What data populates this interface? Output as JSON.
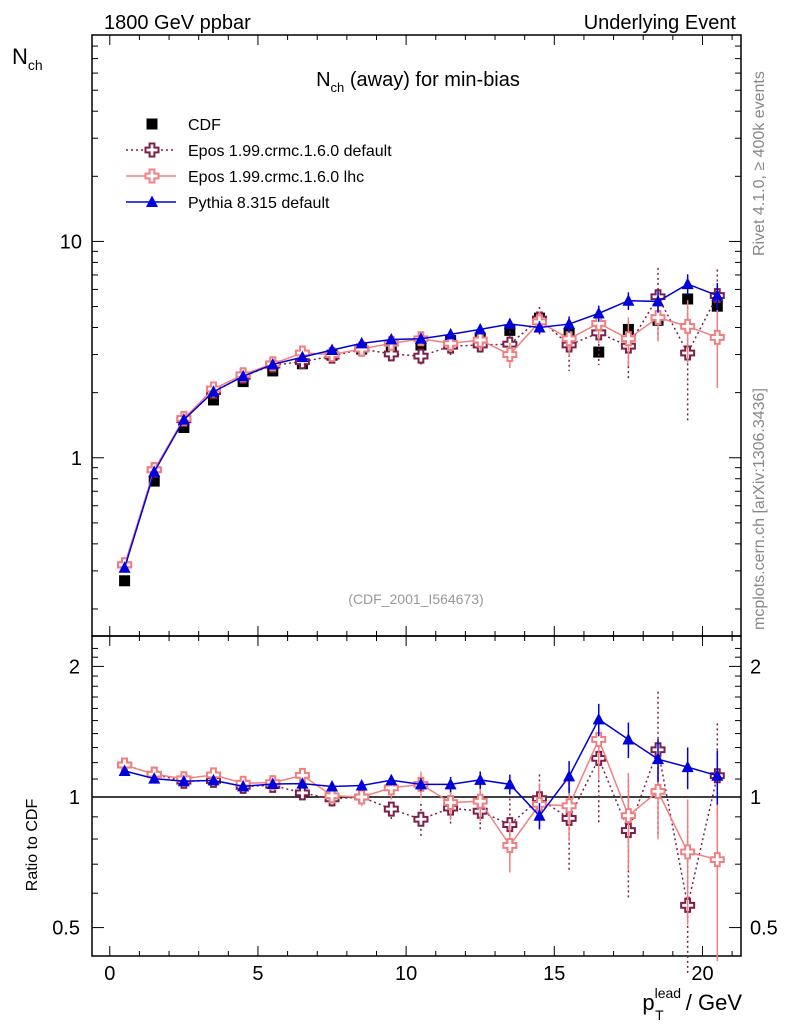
{
  "header": {
    "left": "1800 GeV ppbar",
    "right": "Underlying Event"
  },
  "side_text": {
    "rivet": "Rivet 4.1.0, ≥ 400k events",
    "mcplots": "mcplots.cern.ch [arXiv:1306.3436]"
  },
  "reference": "(CDF_2001_I564673)",
  "chart_data": {
    "type": "scatter",
    "title": "N_ch (away) for min-bias",
    "ylabel": "N_ch",
    "ratio_ylabel": "Ratio to CDF",
    "xlabel": "p_T^lead / GeV",
    "xlim": [
      -0.6,
      21.3
    ],
    "ylim": [
      0.15,
      90
    ],
    "yscale": "log",
    "ratio_ylim": [
      0.43,
      2.35
    ],
    "x_ticks": [
      "0",
      "5",
      "10",
      "15",
      "20"
    ],
    "y_ticks": [
      "1",
      "10"
    ],
    "ratio_ticks": [
      "0.5",
      "1",
      "2"
    ],
    "x": [
      0.5,
      1.5,
      2.5,
      3.5,
      4.5,
      5.5,
      6.5,
      7.5,
      8.5,
      9.5,
      10.5,
      11.5,
      12.5,
      13.5,
      14.5,
      15.5,
      16.5,
      17.5,
      18.5,
      19.5,
      20.5
    ],
    "series": [
      {
        "name": "CDF",
        "style": "data",
        "color": "#000000",
        "values": [
          0.27,
          0.78,
          1.38,
          1.85,
          2.25,
          2.52,
          2.72,
          2.98,
          3.18,
          3.22,
          3.32,
          3.48,
          3.58,
          3.88,
          4.42,
          3.72,
          3.08,
          3.92,
          4.32,
          5.42,
          5.02
        ],
        "errors": [
          0.01,
          0.02,
          0.03,
          0.04,
          0.05,
          0.05,
          0.06,
          0.07,
          0.08,
          0.1,
          0.12,
          0.15,
          0.18,
          0.22,
          0.3,
          0.3,
          0.35,
          0.4,
          0.5,
          0.6,
          0.7
        ]
      },
      {
        "name": "Epos 1.99.crmc.1.6.0 default",
        "style": "dotted-cross",
        "color": "#7b1f4a",
        "values": [
          0.32,
          0.88,
          1.5,
          2.02,
          2.38,
          2.68,
          2.78,
          2.95,
          3.18,
          3.02,
          2.95,
          3.28,
          3.32,
          3.35,
          4.38,
          3.32,
          3.78,
          3.28,
          5.55,
          3.05,
          5.62
        ],
        "errors": [
          0.01,
          0.02,
          0.03,
          0.05,
          0.06,
          0.08,
          0.1,
          0.12,
          0.15,
          0.2,
          0.25,
          0.3,
          0.35,
          0.5,
          0.6,
          0.8,
          1.1,
          1.0,
          2.0,
          1.6,
          1.8
        ]
      },
      {
        "name": "Epos 1.99.crmc.1.6.0 lhc",
        "style": "solid-cross",
        "color": "#f08080",
        "values": [
          0.32,
          0.88,
          1.52,
          2.08,
          2.42,
          2.72,
          3.05,
          3.0,
          3.18,
          3.38,
          3.55,
          3.38,
          3.5,
          3.0,
          4.25,
          3.55,
          4.18,
          3.55,
          4.45,
          4.05,
          3.6
        ],
        "errors": [
          0.01,
          0.02,
          0.03,
          0.05,
          0.06,
          0.07,
          0.1,
          0.12,
          0.15,
          0.2,
          0.25,
          0.3,
          0.35,
          0.4,
          0.5,
          0.6,
          0.8,
          0.9,
          1.0,
          1.3,
          1.5
        ]
      },
      {
        "name": "Pythia 8.315 default",
        "style": "solid-triangle",
        "color": "#0000dd",
        "values": [
          0.31,
          0.86,
          1.5,
          2.02,
          2.38,
          2.7,
          2.92,
          3.15,
          3.38,
          3.52,
          3.55,
          3.72,
          3.92,
          4.15,
          4.0,
          4.15,
          4.65,
          5.32,
          5.28,
          6.35,
          5.62
        ],
        "errors": [
          0.005,
          0.01,
          0.02,
          0.03,
          0.04,
          0.05,
          0.06,
          0.07,
          0.08,
          0.1,
          0.12,
          0.15,
          0.18,
          0.22,
          0.28,
          0.35,
          0.4,
          0.5,
          0.6,
          0.7,
          0.8
        ]
      }
    ]
  }
}
